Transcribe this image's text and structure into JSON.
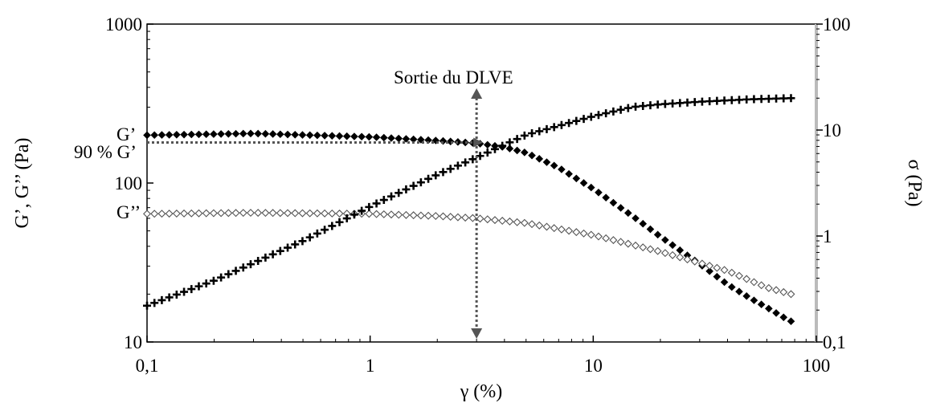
{
  "chart_data": {
    "type": "scatter",
    "title": "",
    "xlabel": "γ (%)",
    "ylabel_left": "G’, G’’ (Pa)",
    "ylabel_right": "σ (Pa)",
    "x_scale": "log",
    "y_left_scale": "log",
    "y_right_scale": "log",
    "xlim": [
      0.1,
      100
    ],
    "ylim_left": [
      10,
      1000
    ],
    "ylim_right": [
      0.1,
      100
    ],
    "x_ticks": [
      {
        "value": 0.1,
        "label": "0,1"
      },
      {
        "value": 1,
        "label": "1"
      },
      {
        "value": 10,
        "label": "10"
      },
      {
        "value": 100,
        "label": "100"
      }
    ],
    "y_left_ticks": [
      {
        "value": 10,
        "label": "10"
      },
      {
        "value": 100,
        "label": "100"
      },
      {
        "value": 1000,
        "label": "1000"
      }
    ],
    "y_right_ticks": [
      {
        "value": 0.1,
        "label": "0,1"
      },
      {
        "value": 1,
        "label": "1"
      },
      {
        "value": 10,
        "label": "10"
      },
      {
        "value": 100,
        "label": "100"
      }
    ],
    "grid": false,
    "annotations": {
      "g_prime_label": "G’",
      "g_double_prime_label": "G’’",
      "ninety_label": "90 % G’",
      "lve_exit_label": "Sortie du DLVE",
      "ninety_value": 180,
      "lve_exit_strain": 3
    },
    "series": [
      {
        "axis": "left",
        "marker": "filled-diamond",
        "color": "#000000",
        "x": [
          0.1,
          0.3,
          1,
          2,
          3,
          4,
          5,
          7,
          10,
          15,
          20,
          30,
          40,
          50,
          60,
          70,
          77
        ],
        "y": [
          200,
          205,
          195,
          185,
          178,
          168,
          155,
          125,
          92,
          62,
          46,
          31,
          23,
          19,
          16.5,
          14.5,
          13.5
        ]
      },
      {
        "axis": "left",
        "marker": "open-diamond",
        "color": "#555555",
        "x": [
          0.1,
          0.3,
          1,
          2,
          3,
          5,
          10,
          20,
          40,
          60,
          77
        ],
        "y": [
          64,
          65,
          64,
          62,
          60,
          56,
          47,
          37,
          28,
          22,
          20
        ]
      },
      {
        "axis": "right",
        "marker": "plus",
        "color": "#000000",
        "x": [
          0.1,
          0.2,
          0.5,
          1,
          2,
          3,
          5,
          10,
          15,
          20,
          30,
          50,
          77
        ],
        "y": [
          0.22,
          0.38,
          0.9,
          1.9,
          3.8,
          5.5,
          9,
          13.5,
          16.5,
          17.5,
          18.5,
          19.5,
          20
        ]
      }
    ]
  }
}
